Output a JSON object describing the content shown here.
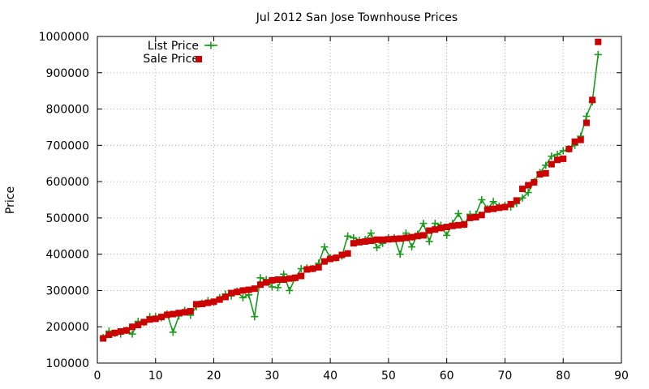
{
  "chart_data": {
    "type": "line",
    "title": "Jul 2012 San Jose Townhouse Prices",
    "xlabel": "",
    "ylabel": "Price",
    "xlim": [
      0,
      90
    ],
    "ylim": [
      100000,
      1000000
    ],
    "xticks": [
      0,
      10,
      20,
      30,
      40,
      50,
      60,
      70,
      80,
      90
    ],
    "yticks": [
      100000,
      200000,
      300000,
      400000,
      500000,
      600000,
      700000,
      800000,
      900000,
      1000000
    ],
    "grid": true,
    "legend_position": "top-left",
    "series": [
      {
        "name": "List Price",
        "style": "line-points",
        "marker": "plus",
        "color": "#1a9a1a",
        "x": [
          1,
          2,
          3,
          4,
          5,
          6,
          7,
          8,
          9,
          10,
          11,
          12,
          13,
          14,
          15,
          16,
          17,
          18,
          19,
          20,
          21,
          22,
          23,
          24,
          25,
          26,
          27,
          28,
          29,
          30,
          31,
          32,
          33,
          34,
          35,
          36,
          37,
          38,
          39,
          40,
          41,
          42,
          43,
          44,
          45,
          46,
          47,
          48,
          49,
          50,
          51,
          52,
          53,
          54,
          55,
          56,
          57,
          58,
          59,
          60,
          61,
          62,
          63,
          64,
          65,
          66,
          67,
          68,
          69,
          70,
          71,
          72,
          73,
          74,
          75,
          76,
          77,
          78,
          79,
          80,
          81,
          82,
          83,
          84,
          85,
          86
        ],
        "y": [
          170000,
          188000,
          182000,
          180000,
          190000,
          180000,
          215000,
          212000,
          228000,
          228000,
          225000,
          235000,
          185000,
          230000,
          245000,
          232000,
          255000,
          265000,
          272000,
          268000,
          280000,
          290000,
          285000,
          298000,
          280000,
          288000,
          228000,
          335000,
          330000,
          310000,
          308000,
          345000,
          300000,
          335000,
          360000,
          362000,
          360000,
          375000,
          420000,
          390000,
          390000,
          395000,
          450000,
          445000,
          438000,
          440000,
          458000,
          418000,
          430000,
          445000,
          445000,
          400000,
          458000,
          420000,
          455000,
          485000,
          435000,
          485000,
          480000,
          452000,
          485000,
          512000,
          482000,
          510000,
          510000,
          550000,
          525000,
          545000,
          532000,
          535000,
          530000,
          540000,
          555000,
          570000,
          600000,
          625000,
          645000,
          670000,
          675000,
          685000,
          690000,
          700000,
          725000,
          780000,
          820000,
          950000
        ]
      },
      {
        "name": "Sale Price",
        "style": "points",
        "marker": "square",
        "color": "#cc0000",
        "x": [
          1,
          2,
          3,
          4,
          5,
          6,
          7,
          8,
          9,
          10,
          11,
          12,
          13,
          14,
          15,
          16,
          17,
          18,
          19,
          20,
          21,
          22,
          23,
          24,
          25,
          26,
          27,
          28,
          29,
          30,
          31,
          32,
          33,
          34,
          35,
          36,
          37,
          38,
          39,
          40,
          41,
          42,
          43,
          44,
          45,
          46,
          47,
          48,
          49,
          50,
          51,
          52,
          53,
          54,
          55,
          56,
          57,
          58,
          59,
          60,
          61,
          62,
          63,
          64,
          65,
          66,
          67,
          68,
          69,
          70,
          71,
          72,
          73,
          74,
          75,
          76,
          77,
          78,
          79,
          80,
          81,
          82,
          83,
          84,
          85,
          86
        ],
        "y": [
          168000,
          178000,
          183000,
          187000,
          190000,
          200000,
          205000,
          213000,
          220000,
          222000,
          227000,
          233000,
          235000,
          238000,
          240000,
          243000,
          262000,
          263000,
          266000,
          269000,
          275000,
          282000,
          293000,
          296000,
          300000,
          302000,
          305000,
          316000,
          322000,
          328000,
          330000,
          330000,
          333000,
          335000,
          340000,
          358000,
          360000,
          364000,
          380000,
          387000,
          390000,
          398000,
          402000,
          430000,
          433000,
          435000,
          437000,
          440000,
          440000,
          441000,
          442000,
          443000,
          445000,
          447000,
          450000,
          452000,
          465000,
          468000,
          472000,
          475000,
          478000,
          480000,
          482000,
          500000,
          502000,
          508000,
          523000,
          525000,
          528000,
          530000,
          538000,
          548000,
          580000,
          590000,
          598000,
          620000,
          623000,
          648000,
          660000,
          663000,
          690000,
          710000,
          715000,
          762000,
          825000,
          985000
        ]
      }
    ]
  }
}
